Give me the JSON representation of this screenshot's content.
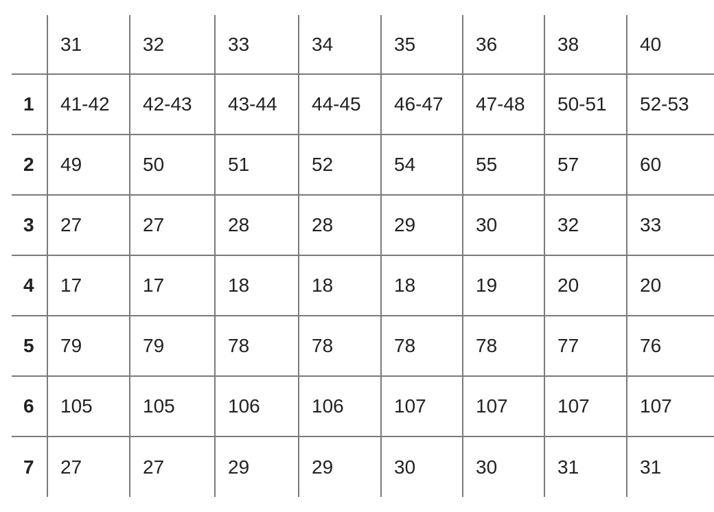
{
  "table": {
    "header": [
      "",
      "31",
      "32",
      "33",
      "34",
      "35",
      "36",
      "38",
      "40"
    ],
    "rows": [
      {
        "label": "1",
        "cells": [
          "41-42",
          "42-43",
          "43-44",
          "44-45",
          "46-47",
          "47-48",
          "50-51",
          "52-53"
        ]
      },
      {
        "label": "2",
        "cells": [
          "49",
          "50",
          "51",
          "52",
          "54",
          "55",
          "57",
          "60"
        ]
      },
      {
        "label": "3",
        "cells": [
          "27",
          "27",
          "28",
          "28",
          "29",
          "30",
          "32",
          "33"
        ]
      },
      {
        "label": "4",
        "cells": [
          "17",
          "17",
          "18",
          "18",
          "18",
          "19",
          "20",
          "20"
        ]
      },
      {
        "label": "5",
        "cells": [
          "79",
          "79",
          "78",
          "78",
          "78",
          "78",
          "77",
          "76"
        ]
      },
      {
        "label": "6",
        "cells": [
          "105",
          "105",
          "106",
          "106",
          "107",
          "107",
          "107",
          "107"
        ]
      },
      {
        "label": "7",
        "cells": [
          "27",
          "27",
          "29",
          "29",
          "30",
          "30",
          "31",
          "31"
        ]
      }
    ]
  }
}
